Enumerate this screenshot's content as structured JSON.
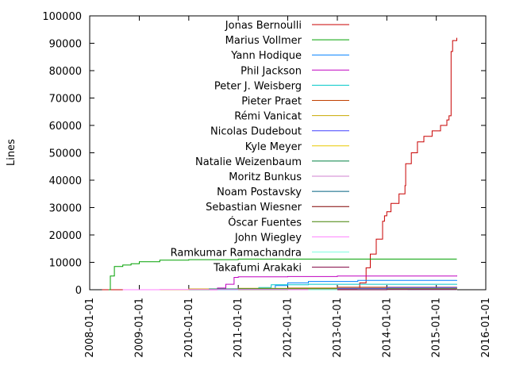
{
  "chart_data": {
    "type": "line",
    "title": "",
    "xlabel": "",
    "ylabel": "Lines",
    "ylim": [
      0,
      100000
    ],
    "xlim": [
      "2008-01-01",
      "2016-01-01"
    ],
    "grid": false,
    "legend_position": "top-right (inside)",
    "yticks": [
      "0",
      "10000",
      "20000",
      "30000",
      "40000",
      "50000",
      "60000",
      "70000",
      "80000",
      "90000",
      "100000"
    ],
    "xticks": [
      "2008-01-01",
      "2009-01-01",
      "2010-01-01",
      "2011-01-01",
      "2012-01-01",
      "2013-01-01",
      "2014-01-01",
      "2015-01-01",
      "2016-01-01"
    ],
    "series": [
      {
        "name": "Jonas Bernoulli",
        "color": "#c80000",
        "points": [
          [
            "2008-04-01",
            0
          ],
          [
            "2013-05-01",
            0
          ],
          [
            "2013-06-15",
            2500
          ],
          [
            "2013-08-01",
            8000
          ],
          [
            "2013-09-01",
            13000
          ],
          [
            "2013-10-15",
            18500
          ],
          [
            "2013-12-01",
            25000
          ],
          [
            "2013-12-15",
            27000
          ],
          [
            "2014-01-01",
            28500
          ],
          [
            "2014-02-01",
            31500
          ],
          [
            "2014-04-01",
            35000
          ],
          [
            "2014-05-15",
            38000
          ],
          [
            "2014-05-20",
            46000
          ],
          [
            "2014-07-01",
            50000
          ],
          [
            "2014-08-15",
            54000
          ],
          [
            "2014-10-01",
            56000
          ],
          [
            "2014-12-01",
            58000
          ],
          [
            "2015-02-01",
            60000
          ],
          [
            "2015-03-20",
            62000
          ],
          [
            "2015-04-05",
            63500
          ],
          [
            "2015-04-20",
            87000
          ],
          [
            "2015-05-01",
            91000
          ],
          [
            "2015-06-01",
            92000
          ]
        ]
      },
      {
        "name": "Marius Vollmer",
        "color": "#00a000",
        "points": [
          [
            "2008-05-20",
            0
          ],
          [
            "2008-06-01",
            5000
          ],
          [
            "2008-07-01",
            8500
          ],
          [
            "2008-09-01",
            9000
          ],
          [
            "2008-11-01",
            9500
          ],
          [
            "2009-01-01",
            10200
          ],
          [
            "2009-06-01",
            10800
          ],
          [
            "2010-01-01",
            11000
          ],
          [
            "2011-01-01",
            11200
          ],
          [
            "2015-06-01",
            11200
          ]
        ]
      },
      {
        "name": "Yann Hodique",
        "color": "#0080ff",
        "points": [
          [
            "2011-07-01",
            0
          ],
          [
            "2011-10-01",
            1500
          ],
          [
            "2012-01-01",
            2500
          ],
          [
            "2012-06-01",
            3000
          ],
          [
            "2013-06-01",
            3400
          ],
          [
            "2015-06-01",
            3500
          ]
        ]
      },
      {
        "name": "Phil Jackson",
        "color": "#c000c0",
        "points": [
          [
            "2010-06-01",
            0
          ],
          [
            "2010-08-01",
            600
          ],
          [
            "2010-10-01",
            2000
          ],
          [
            "2010-12-01",
            4500
          ],
          [
            "2011-01-01",
            4700
          ],
          [
            "2012-01-01",
            4800
          ],
          [
            "2013-01-01",
            5000
          ],
          [
            "2015-06-01",
            5200
          ]
        ]
      },
      {
        "name": "Peter J. Weisberg",
        "color": "#00c8c8",
        "points": [
          [
            "2010-08-01",
            0
          ],
          [
            "2011-06-01",
            800
          ],
          [
            "2011-09-01",
            1800
          ],
          [
            "2012-06-01",
            2000
          ],
          [
            "2015-06-01",
            2100
          ]
        ]
      },
      {
        "name": "Pieter Praet",
        "color": "#c04000",
        "points": [
          [
            "2011-01-01",
            0
          ],
          [
            "2012-01-01",
            600
          ],
          [
            "2013-01-01",
            900
          ],
          [
            "2015-06-01",
            1000
          ]
        ]
      },
      {
        "name": "Rémi Vanicat",
        "color": "#c8a800",
        "points": [
          [
            "2009-01-01",
            0
          ],
          [
            "2010-01-01",
            300
          ],
          [
            "2011-01-01",
            500
          ],
          [
            "2015-06-01",
            600
          ]
        ]
      },
      {
        "name": "Nicolas Dudebout",
        "color": "#4040ff",
        "points": [
          [
            "2012-06-01",
            0
          ],
          [
            "2013-01-01",
            500
          ],
          [
            "2014-01-01",
            800
          ],
          [
            "2015-06-01",
            900
          ]
        ]
      },
      {
        "name": "Kyle Meyer",
        "color": "#e8c800",
        "points": [
          [
            "2014-01-01",
            0
          ],
          [
            "2014-06-01",
            200
          ],
          [
            "2015-06-01",
            400
          ]
        ]
      },
      {
        "name": "Natalie Weizenbaum",
        "color": "#008040",
        "points": [
          [
            "2010-01-01",
            0
          ],
          [
            "2010-06-01",
            300
          ],
          [
            "2015-06-01",
            350
          ]
        ]
      },
      {
        "name": "Moritz Bunkus",
        "color": "#d080d0",
        "points": [
          [
            "2012-01-01",
            0
          ],
          [
            "2013-01-01",
            200
          ],
          [
            "2015-06-01",
            300
          ]
        ]
      },
      {
        "name": "Noam Postavsky",
        "color": "#006080",
        "points": [
          [
            "2013-01-01",
            0
          ],
          [
            "2014-01-01",
            250
          ],
          [
            "2015-06-01",
            300
          ]
        ]
      },
      {
        "name": "Sebastian Wiesner",
        "color": "#800000",
        "points": [
          [
            "2013-06-01",
            0
          ],
          [
            "2014-01-01",
            150
          ],
          [
            "2015-06-01",
            250
          ]
        ]
      },
      {
        "name": "Óscar Fuentes",
        "color": "#408000",
        "points": [
          [
            "2011-01-01",
            0
          ],
          [
            "2012-01-01",
            150
          ],
          [
            "2015-06-01",
            200
          ]
        ]
      },
      {
        "name": "John Wiegley",
        "color": "#ff80ff",
        "points": [
          [
            "2008-09-01",
            0
          ],
          [
            "2009-06-01",
            100
          ],
          [
            "2015-06-01",
            150
          ]
        ]
      },
      {
        "name": "Ramkumar Ramachandra",
        "color": "#80ffe0",
        "points": [
          [
            "2012-06-01",
            0
          ],
          [
            "2013-06-01",
            100
          ],
          [
            "2015-06-01",
            120
          ]
        ]
      },
      {
        "name": "Takafumi Arakaki",
        "color": "#800040",
        "points": [
          [
            "2013-01-01",
            0
          ],
          [
            "2014-01-01",
            80
          ],
          [
            "2015-06-01",
            100
          ]
        ]
      }
    ]
  }
}
